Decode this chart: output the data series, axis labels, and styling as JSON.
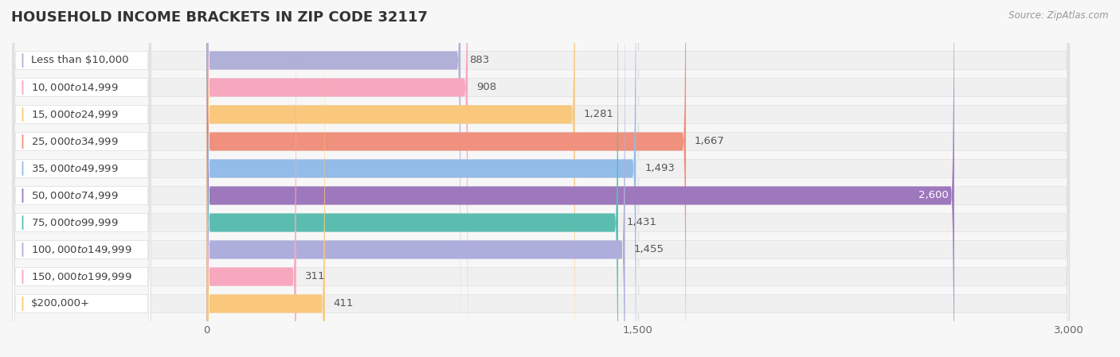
{
  "title": "HOUSEHOLD INCOME BRACKETS IN ZIP CODE 32117",
  "source": "Source: ZipAtlas.com",
  "categories": [
    "Less than $10,000",
    "$10,000 to $14,999",
    "$15,000 to $24,999",
    "$25,000 to $34,999",
    "$35,000 to $49,999",
    "$50,000 to $74,999",
    "$75,000 to $99,999",
    "$100,000 to $149,999",
    "$150,000 to $199,999",
    "$200,000+"
  ],
  "values": [
    883,
    908,
    1281,
    1667,
    1493,
    2600,
    1431,
    1455,
    311,
    411
  ],
  "bar_colors": [
    "#b0b0d8",
    "#f7a8be",
    "#f9c87c",
    "#f0917e",
    "#94bce8",
    "#9e78bc",
    "#5abdb0",
    "#aeaedd",
    "#f7a8be",
    "#f9c87c"
  ],
  "xlim": [
    0,
    3000
  ],
  "xticks": [
    0,
    1500,
    3000
  ],
  "bg_color": "#f7f7f7",
  "row_bg_color": "#ffffff",
  "title_fontsize": 13,
  "label_fontsize": 9.5,
  "value_fontsize": 9.5
}
